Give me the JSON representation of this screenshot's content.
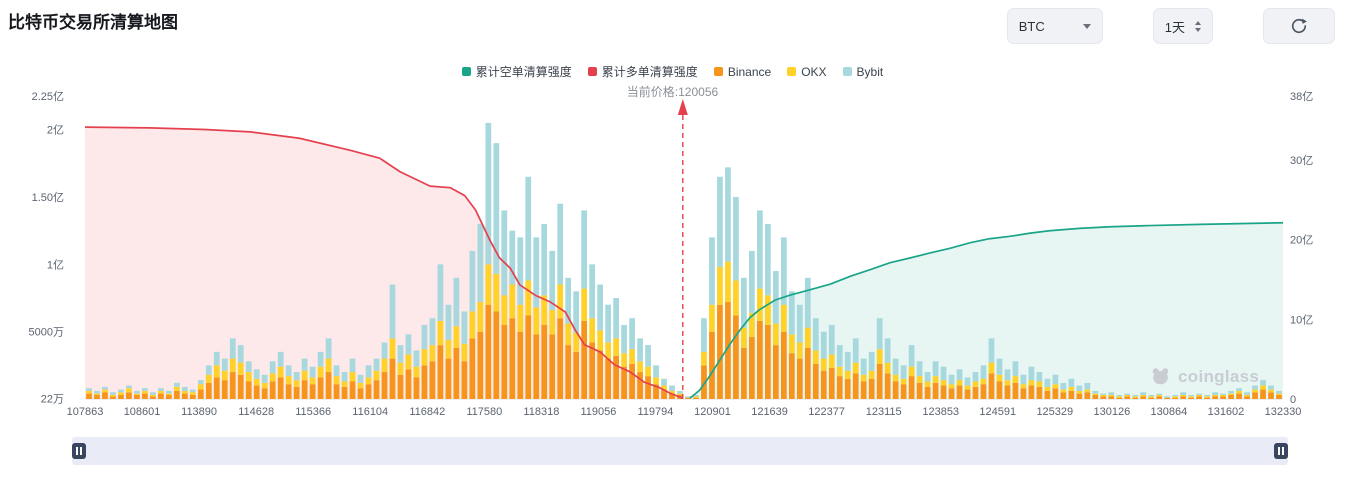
{
  "header": {
    "title": "比特币交易所清算地图"
  },
  "controls": {
    "symbol": "BTC",
    "interval": "1天"
  },
  "legend": {
    "items": [
      {
        "label": "累计空单清算强度",
        "color": "#1aa588"
      },
      {
        "label": "累计多单清算强度",
        "color": "#e5404e"
      },
      {
        "label": "Binance",
        "color": "#f7941c"
      },
      {
        "label": "OKX",
        "color": "#ffd229"
      },
      {
        "label": "Bybit",
        "color": "#a7d8dd"
      }
    ],
    "current_price_label": "当前价格:120056"
  },
  "watermark": {
    "text": "coinglass"
  },
  "chart_data": {
    "type": "bar",
    "title": "比特币交易所清算地图",
    "x_labels": [
      "107863",
      "108601",
      "113890",
      "114628",
      "115366",
      "116104",
      "116842",
      "117580",
      "118318",
      "119056",
      "119794",
      "120901",
      "121639",
      "122377",
      "123115",
      "123853",
      "124591",
      "125329",
      "130126",
      "130864",
      "131602",
      "132330"
    ],
    "left_axis": {
      "max": 225,
      "unit": "百万",
      "ticks": [
        {
          "label": "22万",
          "value": 0.22
        },
        {
          "label": "5000万",
          "value": 50
        },
        {
          "label": "1亿",
          "value": 100
        },
        {
          "label": "1.50亿",
          "value": 150
        },
        {
          "label": "2亿",
          "value": 200
        },
        {
          "label": "2.25亿",
          "value": 225
        }
      ]
    },
    "right_axis": {
      "max": 38,
      "unit": "亿",
      "ticks": [
        {
          "label": "0",
          "value": 0
        },
        {
          "label": "10亿",
          "value": 10
        },
        {
          "label": "20亿",
          "value": 20
        },
        {
          "label": "30亿",
          "value": 30
        },
        {
          "label": "38亿",
          "value": 38
        }
      ]
    },
    "current_price": 120056,
    "current_price_frac": 0.499,
    "current_price_color": "#e5404e",
    "series": [
      {
        "name": "Binance",
        "color": "#f7941c"
      },
      {
        "name": "OKX",
        "color": "#ffd229"
      },
      {
        "name": "Bybit",
        "color": "#a7d8dd"
      }
    ],
    "bars": [
      [
        4,
        2,
        2
      ],
      [
        3,
        1,
        2
      ],
      [
        5,
        2,
        2
      ],
      [
        2,
        1,
        2
      ],
      [
        3,
        2,
        2
      ],
      [
        5,
        3,
        2
      ],
      [
        3,
        1,
        2
      ],
      [
        4,
        2,
        2
      ],
      [
        2,
        1,
        2
      ],
      [
        4,
        2,
        2
      ],
      [
        3,
        1,
        2
      ],
      [
        6,
        3,
        3
      ],
      [
        4,
        2,
        3
      ],
      [
        3,
        2,
        2
      ],
      [
        7,
        4,
        3
      ],
      [
        12,
        6,
        7
      ],
      [
        16,
        9,
        10
      ],
      [
        14,
        7,
        9
      ],
      [
        20,
        10,
        15
      ],
      [
        18,
        9,
        13
      ],
      [
        13,
        7,
        8
      ],
      [
        10,
        5,
        7
      ],
      [
        8,
        4,
        6
      ],
      [
        13,
        6,
        9
      ],
      [
        16,
        8,
        11
      ],
      [
        11,
        6,
        8
      ],
      [
        9,
        5,
        6
      ],
      [
        14,
        7,
        9
      ],
      [
        11,
        5,
        8
      ],
      [
        16,
        8,
        11
      ],
      [
        20,
        10,
        15
      ],
      [
        11,
        6,
        8
      ],
      [
        9,
        4,
        7
      ],
      [
        13,
        7,
        10
      ],
      [
        8,
        4,
        6
      ],
      [
        11,
        5,
        9
      ],
      [
        14,
        7,
        9
      ],
      [
        20,
        10,
        12
      ],
      [
        30,
        15,
        40
      ],
      [
        18,
        9,
        13
      ],
      [
        22,
        11,
        15
      ],
      [
        16,
        8,
        12
      ],
      [
        25,
        12,
        18
      ],
      [
        28,
        12,
        20
      ],
      [
        40,
        18,
        42
      ],
      [
        30,
        14,
        26
      ],
      [
        38,
        16,
        36
      ],
      [
        28,
        13,
        24
      ],
      [
        45,
        20,
        45
      ],
      [
        50,
        22,
        58
      ],
      [
        70,
        30,
        105
      ],
      [
        65,
        28,
        97
      ],
      [
        55,
        22,
        63
      ],
      [
        60,
        25,
        40
      ],
      [
        50,
        20,
        50
      ],
      [
        62,
        26,
        77
      ],
      [
        48,
        20,
        52
      ],
      [
        55,
        22,
        53
      ],
      [
        48,
        18,
        44
      ],
      [
        60,
        25,
        60
      ],
      [
        40,
        16,
        34
      ],
      [
        35,
        14,
        31
      ],
      [
        58,
        24,
        58
      ],
      [
        42,
        18,
        40
      ],
      [
        36,
        15,
        34
      ],
      [
        30,
        12,
        28
      ],
      [
        32,
        13,
        30
      ],
      [
        24,
        10,
        21
      ],
      [
        26,
        11,
        23
      ],
      [
        20,
        8,
        17
      ],
      [
        17,
        7,
        16
      ],
      [
        11,
        5,
        9
      ],
      [
        7,
        3,
        5
      ],
      [
        4,
        2,
        4
      ],
      [
        3,
        1,
        2
      ],
      [
        1,
        0,
        1
      ],
      [
        1,
        1,
        1
      ],
      [
        25,
        10,
        25
      ],
      [
        50,
        20,
        50
      ],
      [
        70,
        28,
        67
      ],
      [
        72,
        30,
        70
      ],
      [
        62,
        26,
        62
      ],
      [
        38,
        15,
        37
      ],
      [
        46,
        18,
        46
      ],
      [
        58,
        24,
        58
      ],
      [
        55,
        22,
        53
      ],
      [
        40,
        16,
        39
      ],
      [
        50,
        20,
        50
      ],
      [
        34,
        14,
        32
      ],
      [
        30,
        12,
        28
      ],
      [
        38,
        15,
        37
      ],
      [
        26,
        10,
        24
      ],
      [
        21,
        9,
        20
      ],
      [
        23,
        10,
        22
      ],
      [
        17,
        7,
        16
      ],
      [
        15,
        6,
        14
      ],
      [
        19,
        8,
        18
      ],
      [
        13,
        5,
        12
      ],
      [
        15,
        6,
        14
      ],
      [
        26,
        11,
        23
      ],
      [
        19,
        8,
        18
      ],
      [
        13,
        5,
        12
      ],
      [
        11,
        4,
        10
      ],
      [
        17,
        7,
        16
      ],
      [
        12,
        5,
        11
      ],
      [
        9,
        4,
        7
      ],
      [
        12,
        5,
        11
      ],
      [
        10,
        4,
        10
      ],
      [
        8,
        3,
        7
      ],
      [
        10,
        4,
        8
      ],
      [
        7,
        3,
        6
      ],
      [
        9,
        4,
        7
      ],
      [
        11,
        4,
        10
      ],
      [
        19,
        8,
        18
      ],
      [
        13,
        5,
        12
      ],
      [
        10,
        4,
        8
      ],
      [
        12,
        5,
        11
      ],
      [
        8,
        3,
        7
      ],
      [
        10,
        4,
        10
      ],
      [
        9,
        4,
        7
      ],
      [
        6,
        3,
        6
      ],
      [
        8,
        3,
        7
      ],
      [
        5,
        2,
        5
      ],
      [
        6,
        3,
        6
      ],
      [
        4,
        2,
        4
      ],
      [
        5,
        2,
        5
      ],
      [
        3,
        1,
        2
      ],
      [
        2,
        1,
        1
      ],
      [
        2,
        1,
        2
      ],
      [
        1,
        1,
        1
      ],
      [
        2,
        1,
        1
      ],
      [
        1,
        1,
        1
      ],
      [
        2,
        1,
        2
      ],
      [
        1,
        1,
        1
      ],
      [
        2,
        1,
        1
      ],
      [
        1,
        0,
        1
      ],
      [
        1,
        1,
        1
      ],
      [
        2,
        1,
        2
      ],
      [
        1,
        1,
        1
      ],
      [
        2,
        1,
        1
      ],
      [
        1,
        1,
        1
      ],
      [
        2,
        1,
        2
      ],
      [
        2,
        1,
        1
      ],
      [
        3,
        1,
        2
      ],
      [
        4,
        2,
        2
      ],
      [
        2,
        1,
        2
      ],
      [
        5,
        2,
        3
      ],
      [
        7,
        3,
        4
      ],
      [
        5,
        2,
        3
      ],
      [
        3,
        1,
        2
      ]
    ],
    "cumulative": [
      {
        "name": "累计多单清算强度",
        "color": "#e5404e",
        "fill": "rgba(235,70,85,0.12)",
        "points": [
          [
            0,
            34.1
          ],
          [
            0.054,
            34.0
          ],
          [
            0.1,
            33.8
          ],
          [
            0.138,
            33.5
          ],
          [
            0.179,
            32.7
          ],
          [
            0.221,
            31.2
          ],
          [
            0.246,
            30.2
          ],
          [
            0.263,
            28.5
          ],
          [
            0.288,
            26.7
          ],
          [
            0.305,
            26.5
          ],
          [
            0.317,
            25.5
          ],
          [
            0.326,
            23.7
          ],
          [
            0.338,
            19.9
          ],
          [
            0.346,
            17.7
          ],
          [
            0.355,
            16.4
          ],
          [
            0.363,
            14.3
          ],
          [
            0.376,
            13.0
          ],
          [
            0.388,
            12.2
          ],
          [
            0.401,
            10.9
          ],
          [
            0.409,
            8.7
          ],
          [
            0.417,
            6.8
          ],
          [
            0.43,
            5.9
          ],
          [
            0.442,
            4.3
          ],
          [
            0.455,
            3.4
          ],
          [
            0.467,
            2.1
          ],
          [
            0.48,
            1.4
          ],
          [
            0.488,
            0.75
          ],
          [
            0.499,
            0.1
          ]
        ]
      },
      {
        "name": "累计空单清算强度",
        "color": "#1aa588",
        "fill": "rgba(26,165,136,0.10)",
        "points": [
          [
            0.505,
            0.1
          ],
          [
            0.513,
            1.1
          ],
          [
            0.522,
            3.0
          ],
          [
            0.53,
            4.9
          ],
          [
            0.538,
            6.8
          ],
          [
            0.547,
            8.7
          ],
          [
            0.555,
            10.2
          ],
          [
            0.563,
            11.2
          ],
          [
            0.576,
            12.4
          ],
          [
            0.588,
            13.0
          ],
          [
            0.605,
            13.7
          ],
          [
            0.622,
            14.4
          ],
          [
            0.639,
            15.4
          ],
          [
            0.655,
            16.2
          ],
          [
            0.672,
            17.1
          ],
          [
            0.689,
            17.7
          ],
          [
            0.705,
            18.3
          ],
          [
            0.722,
            18.9
          ],
          [
            0.739,
            19.6
          ],
          [
            0.755,
            20.1
          ],
          [
            0.772,
            20.4
          ],
          [
            0.789,
            20.8
          ],
          [
            0.805,
            21.1
          ],
          [
            0.83,
            21.4
          ],
          [
            0.856,
            21.6
          ],
          [
            0.889,
            21.75
          ],
          [
            0.931,
            21.9
          ],
          [
            1.0,
            22.1
          ]
        ]
      }
    ]
  }
}
